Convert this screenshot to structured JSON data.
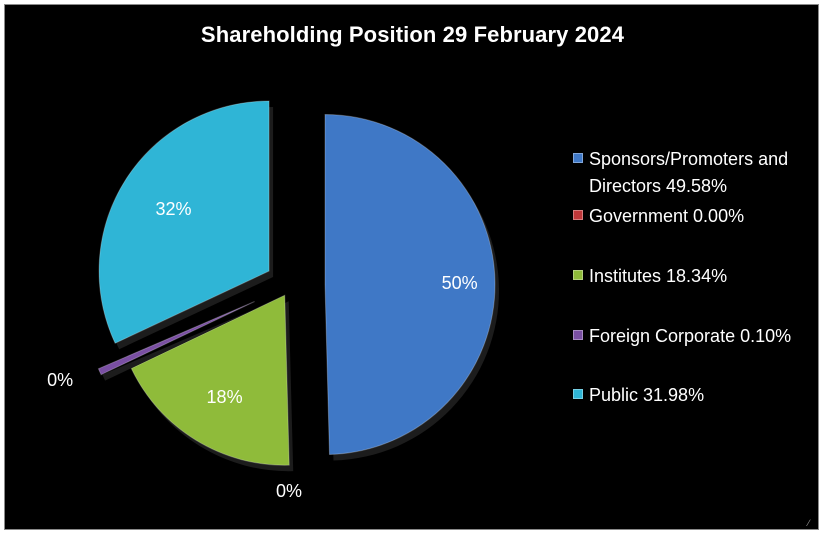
{
  "chart_data": {
    "type": "pie",
    "title": "Shareholding Position 29 February 2024",
    "slices": [
      {
        "name": "Sponsors/Promoters and Directors 49.58%",
        "value": 49.58,
        "label": "50%",
        "color": "#3f78c6"
      },
      {
        "name": "Government 0.00%",
        "value": 0.0,
        "label": "0%",
        "color": "#c0383a"
      },
      {
        "name": "Institutes 18.34%",
        "value": 18.34,
        "label": "18%",
        "color": "#8fbb3a"
      },
      {
        "name": "Foreign Corporate 0.10%",
        "value": 0.1,
        "label": "0%",
        "color": "#7a4fa3"
      },
      {
        "name": "Public 31.98%",
        "value": 31.98,
        "label": "32%",
        "color": "#2fb5d6"
      }
    ],
    "exploded": true,
    "legend_position": "right"
  }
}
